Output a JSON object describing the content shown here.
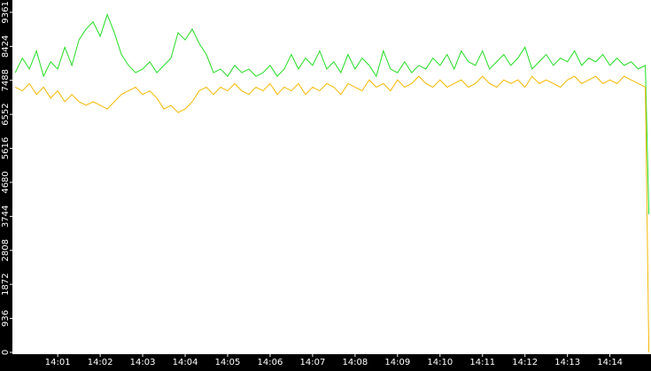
{
  "chart_data": {
    "type": "line",
    "x": [
      0,
      10,
      20,
      30,
      40,
      50,
      60,
      70,
      80,
      90,
      100,
      110,
      120,
      130,
      140,
      150,
      160,
      170,
      180,
      190,
      200,
      210,
      220,
      230,
      240,
      250,
      260,
      270,
      280,
      290,
      300,
      310,
      320,
      330,
      340,
      350,
      360,
      370,
      380,
      390,
      400,
      410,
      420,
      430,
      440,
      450,
      460,
      470,
      480,
      490,
      500,
      510,
      520,
      530,
      540,
      550,
      560,
      570,
      580,
      590,
      600,
      610,
      620,
      630,
      640,
      650,
      660,
      670,
      680,
      690,
      700,
      710,
      720,
      730,
      740,
      750,
      760,
      770,
      780,
      790,
      800,
      810,
      820,
      830,
      840,
      850,
      860,
      870,
      880,
      890,
      895
    ],
    "series": [
      {
        "color": "#22dd22",
        "values": [
          7700,
          8100,
          7800,
          8300,
          7600,
          8000,
          7800,
          8400,
          7900,
          8600,
          8900,
          9100,
          8700,
          9300,
          8800,
          8200,
          7900,
          7700,
          7800,
          8000,
          7700,
          7900,
          8100,
          8800,
          8600,
          8900,
          8500,
          8200,
          7700,
          7800,
          7600,
          7900,
          7700,
          7800,
          7600,
          7700,
          7900,
          7600,
          7800,
          8200,
          7800,
          8100,
          7900,
          8300,
          7800,
          8000,
          7700,
          8200,
          7800,
          8100,
          7900,
          7600,
          8300,
          7800,
          7700,
          8000,
          7700,
          7900,
          7800,
          8100,
          7900,
          8200,
          7800,
          8300,
          8000,
          7900,
          8300,
          7800,
          8000,
          8200,
          7900,
          8100,
          8400,
          7800,
          8000,
          8200,
          7900,
          8100,
          8000,
          8300,
          7900,
          8100,
          8000,
          8200,
          7900,
          8100,
          7900,
          8000,
          7800,
          7900,
          3800
        ]
      },
      {
        "color": "#f5b800",
        "values": [
          7300,
          7200,
          7400,
          7100,
          7300,
          7000,
          7200,
          6900,
          7100,
          6900,
          6800,
          6900,
          6800,
          6700,
          6900,
          7100,
          7200,
          7300,
          7100,
          7200,
          7000,
          6700,
          6800,
          6600,
          6700,
          6900,
          7200,
          7300,
          7100,
          7300,
          7200,
          7400,
          7200,
          7100,
          7300,
          7200,
          7400,
          7100,
          7300,
          7200,
          7400,
          7100,
          7300,
          7200,
          7400,
          7300,
          7100,
          7400,
          7300,
          7200,
          7500,
          7300,
          7400,
          7200,
          7500,
          7300,
          7400,
          7600,
          7400,
          7300,
          7500,
          7300,
          7400,
          7500,
          7300,
          7400,
          7600,
          7400,
          7300,
          7500,
          7400,
          7500,
          7300,
          7600,
          7400,
          7500,
          7400,
          7300,
          7500,
          7600,
          7400,
          7500,
          7600,
          7400,
          7500,
          7400,
          7600,
          7500,
          7400,
          7300,
          0
        ]
      }
    ],
    "xlim": [
      -4,
      898
    ],
    "xticks": [
      {
        "value": 60,
        "label": "14:01"
      },
      {
        "value": 120,
        "label": "14:02"
      },
      {
        "value": 180,
        "label": "14:03"
      },
      {
        "value": 240,
        "label": "14:04"
      },
      {
        "value": 300,
        "label": "14:05"
      },
      {
        "value": 360,
        "label": "14:06"
      },
      {
        "value": 420,
        "label": "14:07"
      },
      {
        "value": 480,
        "label": "14:08"
      },
      {
        "value": 540,
        "label": "14:09"
      },
      {
        "value": 600,
        "label": "14:10"
      },
      {
        "value": 660,
        "label": "14:11"
      },
      {
        "value": 720,
        "label": "14:12"
      },
      {
        "value": 780,
        "label": "14:13"
      },
      {
        "value": 840,
        "label": "14:14"
      }
    ],
    "ylim": [
      -50,
      9700
    ],
    "yticks": [
      0,
      936,
      1872,
      2808,
      3744,
      4680,
      5616,
      6552,
      7488,
      8424,
      9361
    ]
  }
}
